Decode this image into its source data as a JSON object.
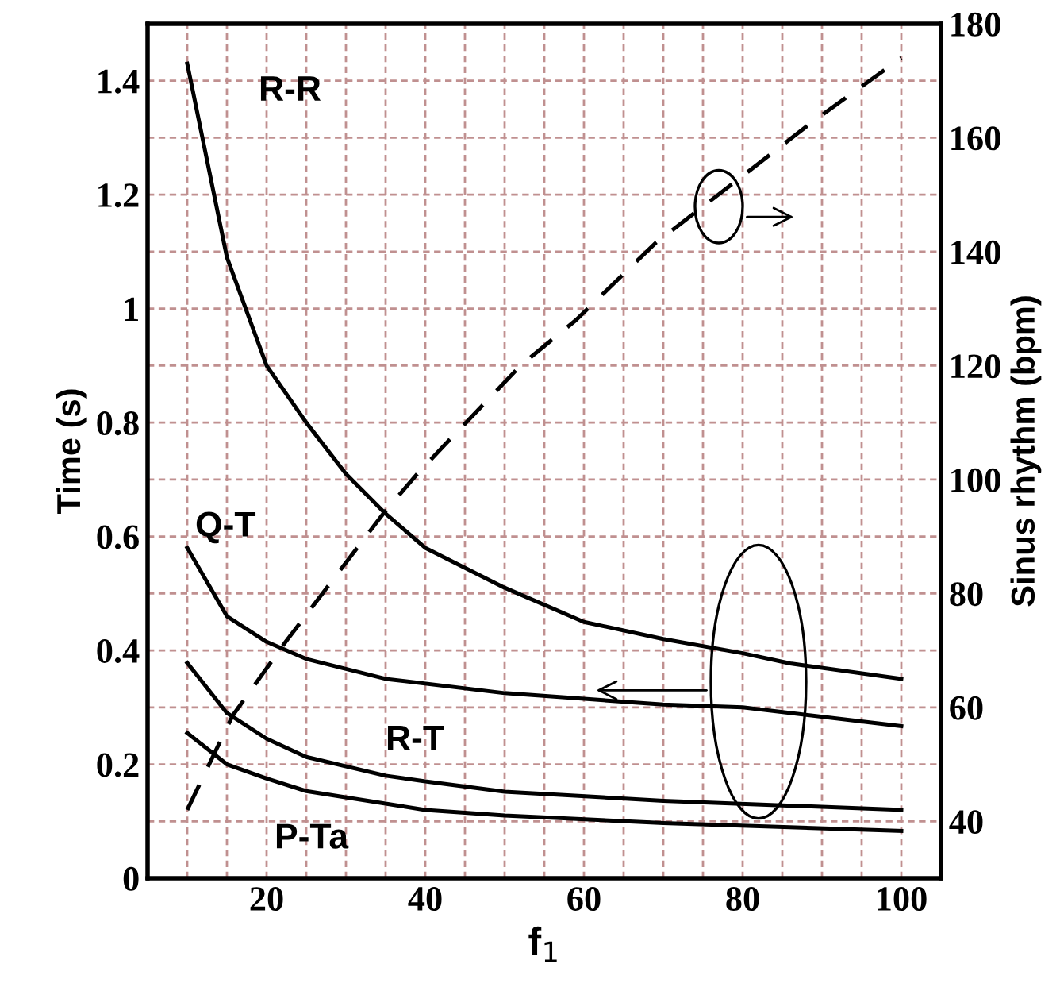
{
  "chart_data": {
    "type": "line",
    "xlabel": "f$_{1}$",
    "ylabel": "Time (s)",
    "y2label": "Sinus rhythm (bpm)",
    "xlim": [
      5,
      105
    ],
    "ylim": [
      0,
      1.5
    ],
    "y2lim": [
      30,
      180
    ],
    "xticks": [
      {
        "value": 10,
        "label": null
      },
      {
        "value": 15,
        "label": null
      },
      20,
      {
        "value": 25,
        "label": null
      },
      {
        "value": 30,
        "label": null
      },
      {
        "value": 35,
        "label": null
      },
      40,
      {
        "value": 45,
        "label": null
      },
      {
        "value": 50,
        "label": null
      },
      {
        "value": 55,
        "label": null
      },
      60,
      {
        "value": 65,
        "label": null
      },
      {
        "value": 70,
        "label": null
      },
      {
        "value": 75,
        "label": null
      },
      80,
      {
        "value": 85,
        "label": null
      },
      {
        "value": 90,
        "label": null
      },
      {
        "value": 95,
        "label": null
      },
      100
    ],
    "yticks": [
      0,
      {
        "value": 0.1,
        "label": null
      },
      0.2,
      {
        "value": 0.3,
        "label": null
      },
      0.4,
      {
        "value": 0.5,
        "label": null
      },
      0.6,
      {
        "value": 0.7,
        "label": null
      },
      0.8,
      {
        "value": 0.9,
        "label": null
      },
      1,
      {
        "value": 1.1,
        "label": null
      },
      1.2,
      {
        "value": 1.3,
        "label": null
      },
      1.4
    ],
    "y2ticks": [
      40,
      60,
      80,
      100,
      120,
      140,
      160,
      180
    ],
    "grid": true,
    "legend": false,
    "marker": "none",
    "series": [
      {
        "name": "R-R",
        "color": "#000000",
        "line_style": "solid",
        "x": [
          10,
          15,
          20,
          25,
          30,
          35,
          40,
          50,
          60,
          70,
          80,
          86,
          100
        ],
        "values": [
          1.43,
          1.09,
          0.9,
          0.8,
          0.71,
          0.64,
          0.58,
          0.51,
          0.45,
          0.42,
          0.395,
          0.377,
          0.35
        ]
      },
      {
        "name": "Q-T",
        "color": "#000000",
        "line_style": "solid",
        "x": [
          10,
          15,
          20,
          25,
          35,
          50,
          70,
          80,
          100
        ],
        "values": [
          0.58,
          0.46,
          0.415,
          0.385,
          0.35,
          0.325,
          0.305,
          0.3,
          0.267
        ]
      },
      {
        "name": "R-T",
        "color": "#000000",
        "line_style": "solid",
        "x": [
          10,
          15,
          20,
          25,
          35,
          40,
          50,
          70,
          100
        ],
        "values": [
          0.378,
          0.29,
          0.245,
          0.213,
          0.18,
          0.17,
          0.152,
          0.136,
          0.12
        ]
      },
      {
        "name": "P-Ta",
        "color": "#000000",
        "line_style": "solid",
        "x": [
          10,
          15,
          20,
          25,
          40,
          50,
          70,
          100
        ],
        "values": [
          0.255,
          0.2,
          0.175,
          0.153,
          0.12,
          0.11,
          0.097,
          0.083
        ]
      },
      {
        "color": "#000000",
        "line_style": "dashed",
        "axis": "y2",
        "x": [
          10,
          15.7,
          22.4,
          34.7,
          39,
          42.4,
          52,
          59,
          69,
          76,
          89,
          100
        ],
        "values": [
          42,
          58.5,
          71.5,
          94,
          101,
          106,
          120,
          128,
          141.5,
          149,
          163,
          174
        ]
      }
    ]
  }
}
